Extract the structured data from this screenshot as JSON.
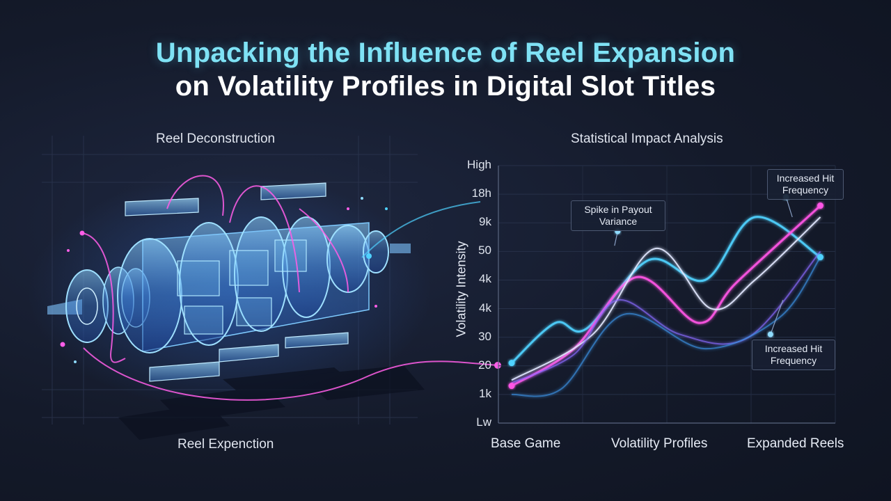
{
  "title": {
    "line1": "Unpacking the Influence of Reel Expansion",
    "line2": "on Volatility Profiles in Digital Slot Titles"
  },
  "left_panel": {
    "heading": "Reel Deconstruction",
    "caption": "Reel Expenction"
  },
  "right_panel": {
    "heading": "Statistical Impact Analysis"
  },
  "chart_data": {
    "type": "line",
    "title": "Statistical Impact Analysis",
    "ylabel": "Volatility Intensity",
    "xlabel": "",
    "y_tick_labels": [
      "High",
      "18h",
      "9k",
      "50",
      "4k",
      "4k",
      "30",
      "20",
      "1k",
      "Lw"
    ],
    "x_tick_labels": [
      "Base Game",
      "Volatility Profiles",
      "Expanded Reels"
    ],
    "xlim": [
      0,
      1
    ],
    "ylim": [
      0,
      9
    ],
    "grid": true,
    "series": [
      {
        "color": "#4fd2ff",
        "x": [
          0.0,
          0.14,
          0.24,
          0.44,
          0.62,
          0.78,
          0.99
        ],
        "y": [
          2.1,
          3.5,
          3.3,
          5.7,
          5.0,
          7.2,
          5.8
        ]
      },
      {
        "color": "#ff55e6",
        "x": [
          0.0,
          0.2,
          0.4,
          0.6,
          0.72,
          0.99
        ],
        "y": [
          1.3,
          2.6,
          5.1,
          3.5,
          4.9,
          7.6
        ]
      },
      {
        "color": "#e2e8ff",
        "x": [
          0.0,
          0.26,
          0.46,
          0.64,
          0.78,
          0.99
        ],
        "y": [
          1.5,
          3.1,
          6.1,
          4.0,
          5.0,
          7.2
        ]
      },
      {
        "color": "#8a6bff",
        "x": [
          0.0,
          0.2,
          0.34,
          0.54,
          0.76,
          0.99
        ],
        "y": [
          1.4,
          2.4,
          4.3,
          3.1,
          3.0,
          6.0
        ]
      },
      {
        "color": "#3a8fe0",
        "x": [
          0.0,
          0.16,
          0.36,
          0.62,
          0.86,
          0.99
        ],
        "y": [
          1.0,
          1.2,
          3.8,
          2.6,
          3.7,
          5.8
        ]
      }
    ],
    "annotations": [
      {
        "text": "Spike in Payout Variance",
        "x": 0.34,
        "y": 6.7
      },
      {
        "text": "Increased Hit Frequency",
        "x": 0.88,
        "y": 7.9
      },
      {
        "text": "Increased Hit Frequency",
        "x": 0.83,
        "y": 3.1
      }
    ]
  },
  "callouts": {
    "spike": "Spike in Payout Variance",
    "top_right": "Increased Hit Frequency",
    "bottom_right": "Increased Hit Frequency"
  },
  "colors": {
    "title_accent": "#7fe2f5",
    "cyan": "#4fd2ff",
    "magenta": "#ff55e6",
    "reel_glass": "#5fb6ff"
  }
}
